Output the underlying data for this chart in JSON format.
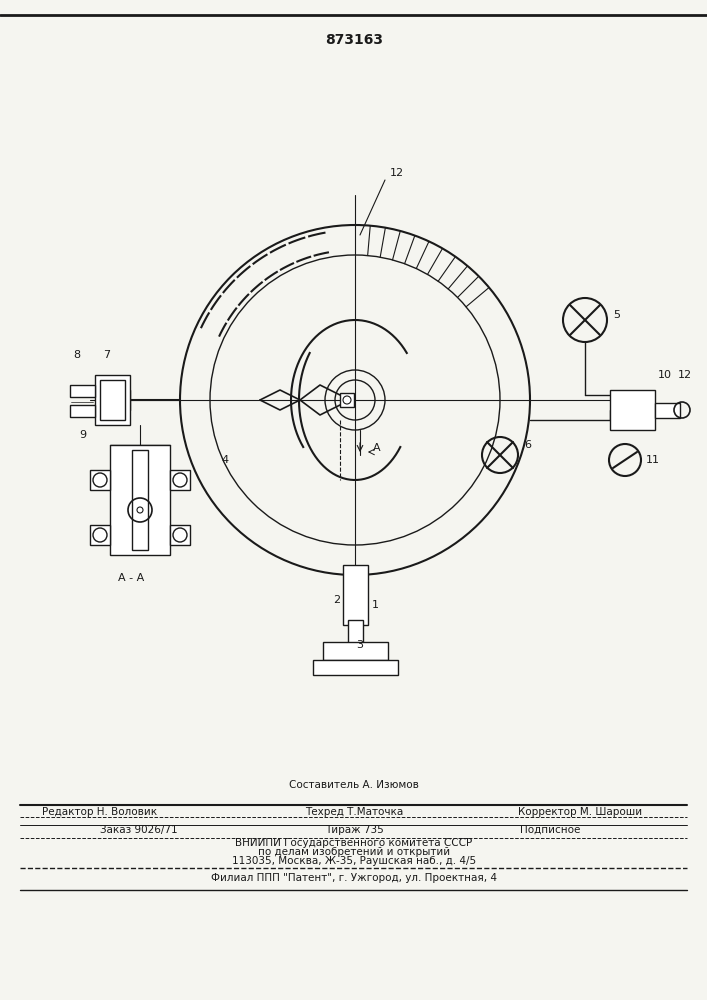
{
  "patent_number": "873163",
  "bg_color": "#f5f5f0",
  "line_color": "#1a1a1a",
  "hatch_color": "#1a1a1a",
  "footer_lines": [
    "Редактор Н. Воловик        Техред Т.Маточка          Корректор М. Шароши",
    "Заказ 9026/71            Тираж 735           Подписное",
    "ВНИИПИ Государственного комитета СССР",
    "по делам изобретений и открытий",
    "113035, Москва, Ж-35, Раушская наб., д. 4/5",
    "Филиал ППП \"Патент\", г. Ужгород, ул. Проектная, 4"
  ],
  "составитель": "Составитель А. Изюмов"
}
